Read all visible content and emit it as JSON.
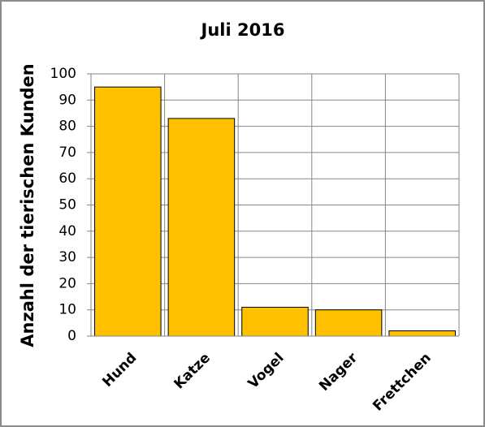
{
  "chart_data": {
    "type": "bar",
    "title": "Juli 2016",
    "y_label": "Anzahl der tierischen Kunden",
    "categories": [
      "Hund",
      "Katze",
      "Vogel",
      "Nager",
      "Frettchen"
    ],
    "values": [
      95,
      83,
      11,
      10,
      2
    ],
    "color": "#ffc000",
    "ylim": [
      0,
      100
    ],
    "yticks": [
      0,
      10,
      20,
      30,
      40,
      50,
      60,
      70,
      80,
      90,
      100
    ],
    "grid": true
  }
}
